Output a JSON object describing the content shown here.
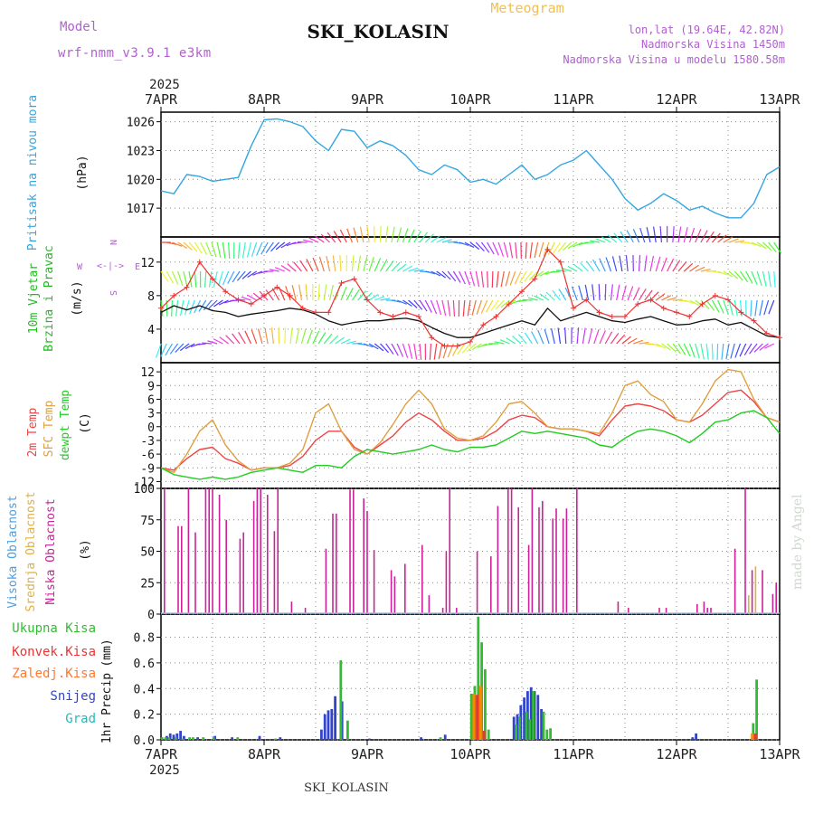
{
  "header": {
    "model_label": "Model",
    "model_value": "wrf-nmm_v3.9.1 e3km",
    "station": "SKI_KOLASIN",
    "product": "Meteogram",
    "lonlat": "lon,lat (19.64E, 42.82N)",
    "elevation": "Nadmorska Visina 1450m",
    "model_elevation": "Nadmorska Visina u modelu 1580.58m",
    "footer_station": "SKI_KOLASIN",
    "credit": "made by Angel"
  },
  "time_axis": {
    "year": "2025",
    "labels": [
      "7APR",
      "8APR",
      "9APR",
      "10APR",
      "11APR",
      "12APR",
      "13APR"
    ]
  },
  "colors": {
    "pressure": "#33a6e0",
    "t2m": "#ee4444",
    "tsfc": "#e0a040",
    "dewpoint": "#22cc22",
    "cloud_high": "#4aa0e0",
    "cloud_mid": "#e0b040",
    "cloud_low": "#cc2299",
    "rain_total": "#33bb33",
    "rain_conv": "#ee3333",
    "freezing": "#ff8800",
    "snow": "#3344cc",
    "hail": "#22bbbb"
  },
  "chart_data": [
    {
      "type": "line",
      "name": "pressure",
      "ylabel": "Pritisak na nivou mora",
      "unit": "(hPa)",
      "ylim": [
        1014,
        1027
      ],
      "yticks": [
        1017,
        1020,
        1023,
        1026
      ],
      "x_hours": [
        0,
        3,
        6,
        9,
        12,
        15,
        18,
        21,
        24,
        27,
        30,
        33,
        36,
        39,
        42,
        45,
        48,
        51,
        54,
        57,
        60,
        63,
        66,
        69,
        72,
        75,
        78,
        81,
        84,
        87,
        90,
        93,
        96,
        99,
        102,
        105,
        108,
        111,
        114,
        117,
        120,
        123,
        126,
        129,
        132,
        135,
        138,
        141,
        144
      ],
      "values": [
        1018.8,
        1018.5,
        1020.5,
        1020.3,
        1019.8,
        1020.0,
        1020.2,
        1023.5,
        1026.2,
        1026.3,
        1026.0,
        1025.5,
        1024.0,
        1023.0,
        1025.2,
        1025.0,
        1023.3,
        1024.0,
        1023.5,
        1022.5,
        1021.0,
        1020.5,
        1021.5,
        1021.0,
        1019.7,
        1020.0,
        1019.5,
        1020.5,
        1021.5,
        1020.0,
        1020.5,
        1021.5,
        1022.0,
        1023.0,
        1021.5,
        1020.0,
        1018.0,
        1016.8,
        1017.5,
        1018.5,
        1017.8,
        1016.8,
        1017.2,
        1016.5,
        1016.0,
        1016.0,
        1017.5,
        1020.5,
        1021.3
      ]
    },
    {
      "type": "line",
      "name": "wind",
      "ylabel": "10m Vjetar Brzina i Pravac",
      "unit": "(m/s)",
      "direction_legend": [
        "N",
        "E",
        "S",
        "W"
      ],
      "ylim": [
        0,
        15
      ],
      "yticks": [
        4,
        8,
        12
      ],
      "x_hours": [
        0,
        3,
        6,
        9,
        12,
        15,
        18,
        21,
        24,
        27,
        30,
        33,
        36,
        39,
        42,
        45,
        48,
        51,
        54,
        57,
        60,
        63,
        66,
        69,
        72,
        75,
        78,
        81,
        84,
        87,
        90,
        93,
        96,
        99,
        102,
        105,
        108,
        111,
        114,
        117,
        120,
        123,
        126,
        129,
        132,
        135,
        138,
        141,
        144
      ],
      "series": [
        {
          "name": "speed_mean",
          "values": [
            6.0,
            6.8,
            6.3,
            6.8,
            6.2,
            6.0,
            5.5,
            5.8,
            6.0,
            6.2,
            6.5,
            6.3,
            5.8,
            5.0,
            4.5,
            4.8,
            5.0,
            5.0,
            5.2,
            5.3,
            5.0,
            4.2,
            3.5,
            3.0,
            3.0,
            3.5,
            4.0,
            4.5,
            5.0,
            4.5,
            6.5,
            5.0,
            5.5,
            6.0,
            5.5,
            5.0,
            4.8,
            5.2,
            5.5,
            5.0,
            4.5,
            4.6,
            5.0,
            5.2,
            4.5,
            4.8,
            4.0,
            3.2,
            3.0
          ]
        },
        {
          "name": "gust",
          "values": [
            6.5,
            8.0,
            9.0,
            12.0,
            10.0,
            8.5,
            7.5,
            7.0,
            8.0,
            9.0,
            8.0,
            6.5,
            6.0,
            6.0,
            9.5,
            10.0,
            7.5,
            6.0,
            5.5,
            6.0,
            5.5,
            3.0,
            2.0,
            2.0,
            2.5,
            4.5,
            5.5,
            7.0,
            8.5,
            10.0,
            13.5,
            12.0,
            6.5,
            7.5,
            6.0,
            5.5,
            5.5,
            7.0,
            7.5,
            6.5,
            6.0,
            5.5,
            7.0,
            8.0,
            7.5,
            6.0,
            5.0,
            3.5,
            3.0
          ]
        }
      ]
    },
    {
      "type": "line",
      "name": "temperature",
      "ylabel": [
        "2m Temp",
        "SFC Temp",
        "dewpt Temp"
      ],
      "unit": "(C)",
      "ylim": [
        -13.5,
        14
      ],
      "yticks": [
        -12,
        -9,
        -6,
        -3,
        0,
        3,
        6,
        9,
        12
      ],
      "x_hours": [
        0,
        3,
        6,
        9,
        12,
        15,
        18,
        21,
        24,
        27,
        30,
        33,
        36,
        39,
        42,
        45,
        48,
        51,
        54,
        57,
        60,
        63,
        66,
        69,
        72,
        75,
        78,
        81,
        84,
        87,
        90,
        93,
        96,
        99,
        102,
        105,
        108,
        111,
        114,
        117,
        120,
        123,
        126,
        129,
        132,
        135,
        138,
        141,
        144
      ],
      "series": [
        {
          "name": "t2m",
          "values": [
            -9.0,
            -9.5,
            -7.0,
            -5.0,
            -4.5,
            -7.0,
            -8.0,
            -9.5,
            -9.0,
            -9.0,
            -8.5,
            -6.5,
            -3.0,
            -1.0,
            -1.0,
            -4.5,
            -6.0,
            -4.0,
            -2.0,
            1.0,
            3.0,
            1.5,
            -1.0,
            -3.0,
            -3.0,
            -2.5,
            -1.0,
            1.5,
            2.5,
            2.0,
            0.0,
            -0.5,
            -0.5,
            -1.0,
            -2.0,
            1.5,
            4.5,
            5.0,
            4.5,
            3.5,
            1.5,
            1.0,
            2.5,
            5.0,
            7.5,
            8.0,
            5.5,
            2.0,
            1.0
          ]
        },
        {
          "name": "tsfc",
          "values": [
            -9.0,
            -10.0,
            -6.0,
            -1.0,
            1.5,
            -4.0,
            -7.5,
            -9.5,
            -9.0,
            -9.0,
            -8.0,
            -5.0,
            3.0,
            5.0,
            -1.0,
            -5.0,
            -6.0,
            -3.5,
            0.5,
            5.0,
            8.0,
            5.0,
            -0.5,
            -2.5,
            -3.0,
            -2.0,
            1.0,
            5.0,
            5.5,
            3.0,
            0.0,
            -0.5,
            -0.5,
            -1.0,
            -1.5,
            3.0,
            9.0,
            10.0,
            7.0,
            5.5,
            1.5,
            1.0,
            5.0,
            10.0,
            12.5,
            12.0,
            6.0,
            2.0,
            1.0
          ]
        },
        {
          "name": "dewpoint",
          "values": [
            -9.0,
            -10.5,
            -11.0,
            -11.5,
            -11.0,
            -11.5,
            -11.0,
            -10.0,
            -9.5,
            -9.0,
            -9.5,
            -10.0,
            -8.5,
            -8.5,
            -9.0,
            -6.5,
            -5.0,
            -5.5,
            -6.0,
            -5.5,
            -5.0,
            -4.0,
            -5.0,
            -5.5,
            -4.5,
            -4.5,
            -4.0,
            -2.5,
            -1.0,
            -1.5,
            -1.0,
            -1.5,
            -2.0,
            -2.5,
            -4.0,
            -4.5,
            -2.5,
            -1.0,
            -0.5,
            -1.0,
            -2.0,
            -3.5,
            -1.5,
            1.0,
            1.5,
            3.0,
            3.5,
            2.0,
            -1.5
          ]
        }
      ]
    },
    {
      "type": "bar",
      "name": "cloud",
      "ylabel": [
        "Visoka Oblacnost",
        "Srednja Oblacnost",
        "Niska Oblacnost"
      ],
      "unit": "(%)",
      "ylim": [
        0,
        100
      ],
      "yticks": [
        0,
        25,
        50,
        75,
        100
      ],
      "bar_step_hours": 1,
      "series": [
        {
          "name": "low",
          "points": [
            [
              1,
              100
            ],
            [
              5,
              70
            ],
            [
              6,
              70
            ],
            [
              8,
              100
            ],
            [
              10,
              65
            ],
            [
              13,
              100
            ],
            [
              14,
              100
            ],
            [
              15,
              100
            ],
            [
              17,
              95
            ],
            [
              19,
              75
            ],
            [
              23,
              60
            ],
            [
              24,
              65
            ],
            [
              27,
              90
            ],
            [
              28,
              100
            ],
            [
              29,
              100
            ],
            [
              31,
              95
            ],
            [
              33,
              66
            ],
            [
              34,
              100
            ],
            [
              38,
              10
            ],
            [
              42,
              5
            ],
            [
              48,
              52
            ],
            [
              50,
              80
            ],
            [
              51,
              80
            ],
            [
              55,
              99
            ],
            [
              56,
              99
            ],
            [
              59,
              92
            ],
            [
              60,
              82
            ],
            [
              62,
              51
            ],
            [
              67,
              35
            ],
            [
              68,
              30
            ],
            [
              71,
              40
            ],
            [
              76,
              55
            ],
            [
              78,
              15
            ],
            [
              82,
              5
            ],
            [
              83,
              50
            ],
            [
              84,
              100
            ],
            [
              86,
              5
            ],
            [
              92,
              50
            ],
            [
              96,
              46
            ],
            [
              98,
              86
            ],
            [
              101,
              100
            ],
            [
              102,
              100
            ],
            [
              104,
              85
            ],
            [
              107,
              55
            ],
            [
              108,
              100
            ],
            [
              110,
              85
            ],
            [
              111,
              90
            ],
            [
              114,
              76
            ],
            [
              115,
              84
            ],
            [
              117,
              76
            ],
            [
              118,
              84
            ],
            [
              121,
              100
            ],
            [
              133,
              10
            ],
            [
              136,
              5
            ],
            [
              145,
              5
            ],
            [
              147,
              5
            ],
            [
              156,
              8
            ],
            [
              158,
              10
            ],
            [
              159,
              5
            ],
            [
              160,
              5
            ],
            [
              167,
              52
            ],
            [
              170,
              100
            ],
            [
              172,
              35
            ],
            [
              175,
              35
            ],
            [
              178,
              16
            ],
            [
              179,
              25
            ]
          ]
        },
        {
          "name": "mid",
          "points": [
            [
              173,
              38
            ],
            [
              171,
              15
            ]
          ]
        }
      ]
    },
    {
      "type": "bar",
      "name": "precipitation",
      "ylabel": "1hr Precip",
      "unit": "(mm)",
      "ylim": [
        0,
        0.98
      ],
      "yticks": [
        0,
        0.2,
        0.4,
        0.6,
        0.8
      ],
      "legend": [
        "Ukupna Kisa",
        "Konvek.Kisa",
        "Zaledj.Kisa",
        "Snijeg",
        "Grad"
      ],
      "bar_step_hours": 1,
      "series": [
        {
          "name": "snow",
          "points": [
            [
              2,
              0.03
            ],
            [
              3,
              0.05
            ],
            [
              4,
              0.04
            ],
            [
              5,
              0.05
            ],
            [
              6,
              0.07
            ],
            [
              7,
              0.03
            ],
            [
              11,
              0.02
            ],
            [
              16,
              0.03
            ],
            [
              21,
              0.02
            ],
            [
              29,
              0.03
            ],
            [
              35,
              0.02
            ],
            [
              47,
              0.08
            ],
            [
              48,
              0.2
            ],
            [
              49,
              0.23
            ],
            [
              50,
              0.24
            ],
            [
              51,
              0.34
            ],
            [
              53,
              0.3
            ],
            [
              61,
              0.01
            ],
            [
              76,
              0.02
            ],
            [
              83,
              0.04
            ],
            [
              103,
              0.18
            ],
            [
              104,
              0.2
            ],
            [
              105,
              0.27
            ],
            [
              106,
              0.33
            ],
            [
              107,
              0.38
            ],
            [
              108,
              0.41
            ],
            [
              109,
              0.38
            ],
            [
              110,
              0.35
            ],
            [
              111,
              0.24
            ],
            [
              155,
              0.02
            ],
            [
              156,
              0.05
            ]
          ]
        },
        {
          "name": "total",
          "points": [
            [
              0,
              0.02
            ],
            [
              1,
              0.02
            ],
            [
              2,
              0.02
            ],
            [
              4,
              0.02
            ],
            [
              6,
              0.01
            ],
            [
              8,
              0.02
            ],
            [
              9,
              0.02
            ],
            [
              12,
              0.02
            ],
            [
              15,
              0.02
            ],
            [
              22,
              0.02
            ],
            [
              33,
              0.01
            ],
            [
              52,
              0.62
            ],
            [
              54,
              0.15
            ],
            [
              81,
              0.02
            ],
            [
              90,
              0.36
            ],
            [
              91,
              0.42
            ],
            [
              92,
              0.96
            ],
            [
              93,
              0.76
            ],
            [
              94,
              0.55
            ],
            [
              95,
              0.08
            ],
            [
              103,
              0.12
            ],
            [
              104,
              0.18
            ],
            [
              106,
              0.22
            ],
            [
              107,
              0.16
            ],
            [
              108,
              0.38
            ],
            [
              111,
              0.22
            ],
            [
              112,
              0.08
            ],
            [
              113,
              0.09
            ],
            [
              172,
              0.13
            ],
            [
              173,
              0.47
            ]
          ]
        },
        {
          "name": "conv",
          "points": [
            [
              92,
              0.35
            ],
            [
              94,
              0.07
            ],
            [
              173,
              0.05
            ]
          ]
        },
        {
          "name": "freezing",
          "points": [
            [
              91,
              0.36
            ],
            [
              93,
              0.42
            ],
            [
              172,
              0.05
            ]
          ]
        }
      ]
    }
  ]
}
